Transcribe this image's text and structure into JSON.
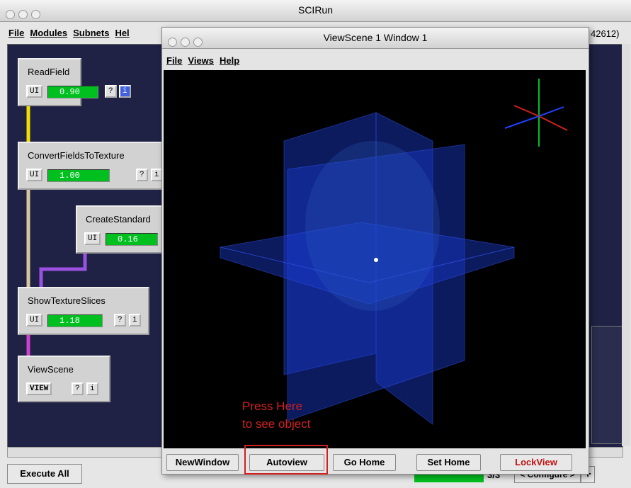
{
  "main_window": {
    "title": "SCIRun",
    "menu": [
      "File",
      "Modules",
      "Subnets",
      "Hel"
    ],
    "status_id": "42612)"
  },
  "modules": [
    {
      "name": "ReadField",
      "ui": "UI",
      "progress": "0.90",
      "help": "?",
      "info": "i"
    },
    {
      "name": "ConvertFieldsToTexture",
      "ui": "UI",
      "progress": "1.00",
      "help": "?",
      "info": "i"
    },
    {
      "name": "CreateStandard",
      "ui": "UI",
      "progress": "0.16"
    },
    {
      "name": "ShowTextureSlices",
      "ui": "UI",
      "progress": "1.18",
      "help": "?",
      "info": "i"
    },
    {
      "name": "ViewScene",
      "ui": "VIEW",
      "help": "?",
      "info": "i"
    }
  ],
  "bottom_bar": {
    "execute": "Execute All",
    "counter": "3/3",
    "configure": "< Configure >",
    "plus": "+"
  },
  "viewer": {
    "title": "ViewScene 1 Window 1",
    "menu": [
      "File",
      "Views",
      "Help"
    ],
    "buttons": [
      "NewWindow",
      "Autoview",
      "Go Home",
      "Set Home",
      "LockView"
    ],
    "annotation": [
      "Press Here",
      "to see object"
    ]
  }
}
